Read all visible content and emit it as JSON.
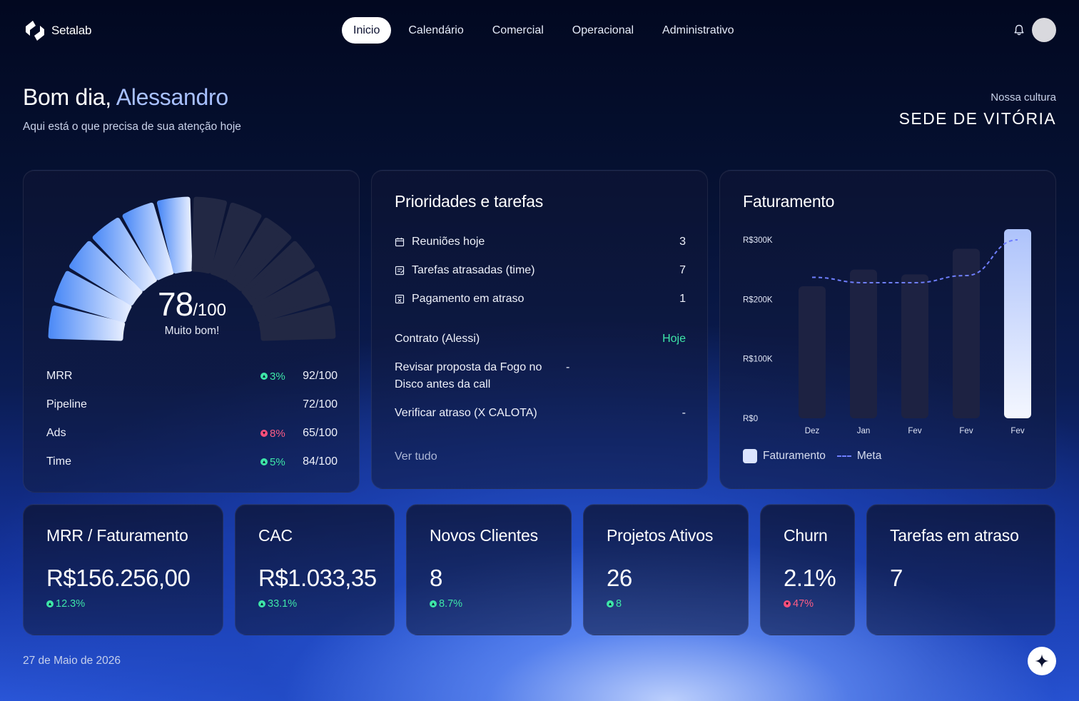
{
  "header": {
    "brand": "Setalab",
    "nav": [
      {
        "label": "Inicio",
        "active": true
      },
      {
        "label": "Calendário",
        "active": false
      },
      {
        "label": "Comercial",
        "active": false
      },
      {
        "label": "Operacional",
        "active": false
      },
      {
        "label": "Administrativo",
        "active": false
      }
    ],
    "notification_icon": "bell-icon"
  },
  "greeting": {
    "prefix": "Bom dia,",
    "name": "Alessandro",
    "subtitle": "Aqui está o que precisa de sua atenção hoje"
  },
  "culture": {
    "label": "Nossa cultura",
    "title": "SEDE DE VITÓRIA"
  },
  "score": {
    "value": "78",
    "max": "/100",
    "label": "Muito bom!",
    "segments_total": 12,
    "segments_active": 6,
    "metrics": [
      {
        "name": "MRR",
        "delta": "3%",
        "trend": "up",
        "score": "92/100"
      },
      {
        "name": "Pipeline",
        "delta": "",
        "trend": "",
        "score": "72/100"
      },
      {
        "name": "Ads",
        "delta": "8%",
        "trend": "down",
        "score": "65/100"
      },
      {
        "name": "Time",
        "delta": "5%",
        "trend": "up",
        "score": "84/100"
      }
    ]
  },
  "tasks": {
    "title": "Prioridades e tarefas",
    "summary": [
      {
        "icon": "calendar-icon",
        "label": "Reuniões hoje",
        "value": "3"
      },
      {
        "icon": "task-list-icon",
        "label": "Tarefas atrasadas (time)",
        "value": "7"
      },
      {
        "icon": "invoice-icon",
        "label": "Pagamento em atraso",
        "value": "1"
      }
    ],
    "items": [
      {
        "label": "Contrato (Alessi)",
        "value": "Hoje",
        "highlight": true
      },
      {
        "label": "Revisar proposta da Fogo no Disco antes da call",
        "value": "-",
        "highlight": false
      },
      {
        "label": "Verificar atraso (X CALOTA)",
        "value": "-",
        "highlight": false
      }
    ],
    "see_all": "Ver tudo"
  },
  "revenue": {
    "title": "Faturamento",
    "legend": {
      "bars": "Faturamento",
      "line": "Meta"
    },
    "colors": {
      "bar": "#1d2242",
      "bar_highlight": "#dbe5ff",
      "meta": "#6f7fff"
    }
  },
  "chart_data": {
    "type": "bar",
    "title": "Faturamento",
    "categories": [
      "Dez",
      "Jan",
      "Fev",
      "Fev",
      "Fev"
    ],
    "series": [
      {
        "name": "Faturamento",
        "values": [
          222000,
          250000,
          242000,
          285000,
          318000
        ]
      },
      {
        "name": "Meta",
        "type": "line",
        "style": "dashed",
        "values": [
          237000,
          228000,
          228000,
          240000,
          300000
        ]
      }
    ],
    "y_ticks": [
      {
        "value": 0,
        "label": "R$0"
      },
      {
        "value": 100000,
        "label": "R$100K"
      },
      {
        "value": 200000,
        "label": "R$200K"
      },
      {
        "value": 300000,
        "label": "R$300K"
      }
    ],
    "ylim": [
      0,
      300000
    ],
    "highlight_index": 4,
    "legend_position": "bottom-left",
    "grid": false
  },
  "kpis": [
    {
      "title": "MRR / Faturamento",
      "value": "R$156.256,00",
      "delta": "12.3%",
      "trend": "up"
    },
    {
      "title": "CAC",
      "value": "R$1.033,35",
      "delta": "33.1%",
      "trend": "up"
    },
    {
      "title": "Novos Clientes",
      "value": "8",
      "delta": "8.7%",
      "trend": "up"
    },
    {
      "title": "Projetos Ativos",
      "value": "26",
      "delta": "8",
      "trend": "up"
    },
    {
      "title": "Churn",
      "value": "2.1%",
      "delta": "47%",
      "trend": "down"
    },
    {
      "title": "Tarefas em atraso",
      "value": "7",
      "delta": "",
      "trend": ""
    }
  ],
  "footer": {
    "date": "27 de Maio de 2026",
    "assistant_icon": "sparkle-icon"
  }
}
